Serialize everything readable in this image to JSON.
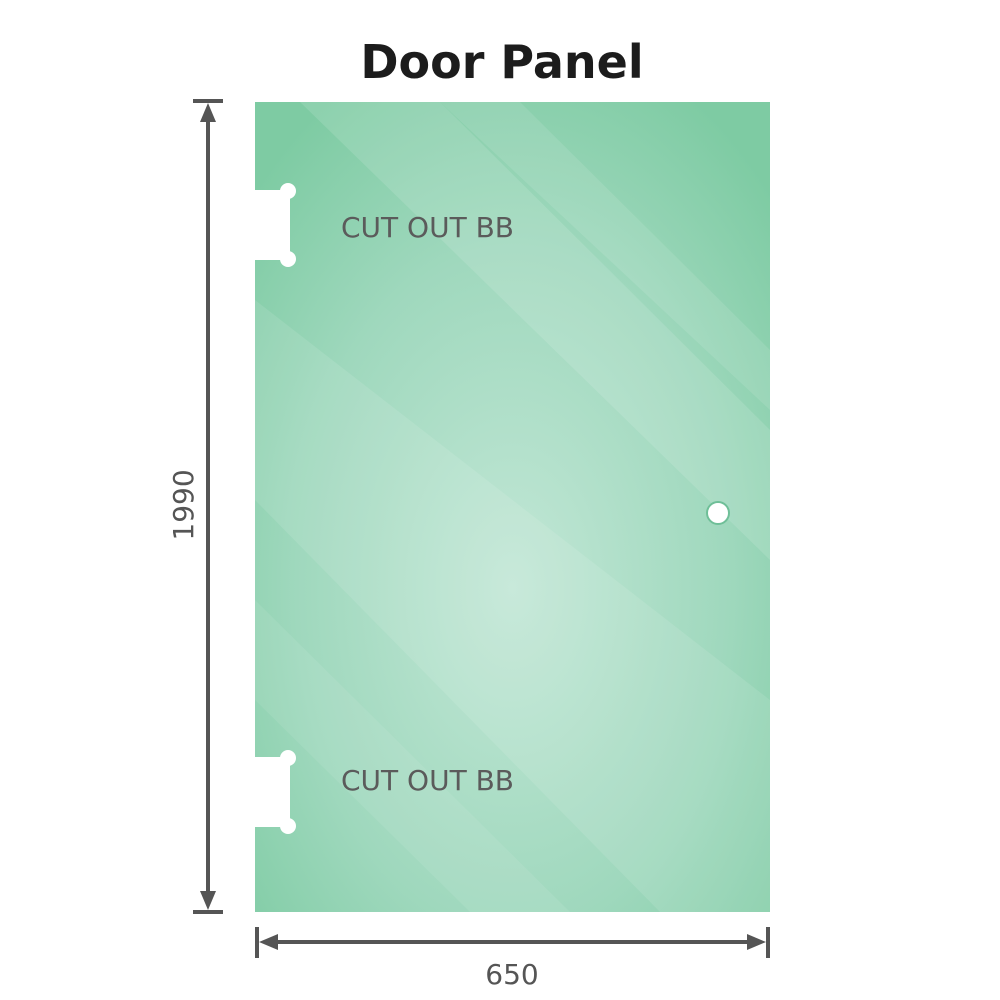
{
  "title": "Door Panel",
  "cutouts": [
    {
      "label": "CUT OUT BB"
    },
    {
      "label": "CUT OUT BB"
    }
  ],
  "dimensions": {
    "height": "1990",
    "width": "650"
  },
  "colors": {
    "glass_edge": "#7ecba3",
    "glass_center": "#bfe6d4",
    "dimension_line": "#555555",
    "title": "#1c1c1c"
  }
}
